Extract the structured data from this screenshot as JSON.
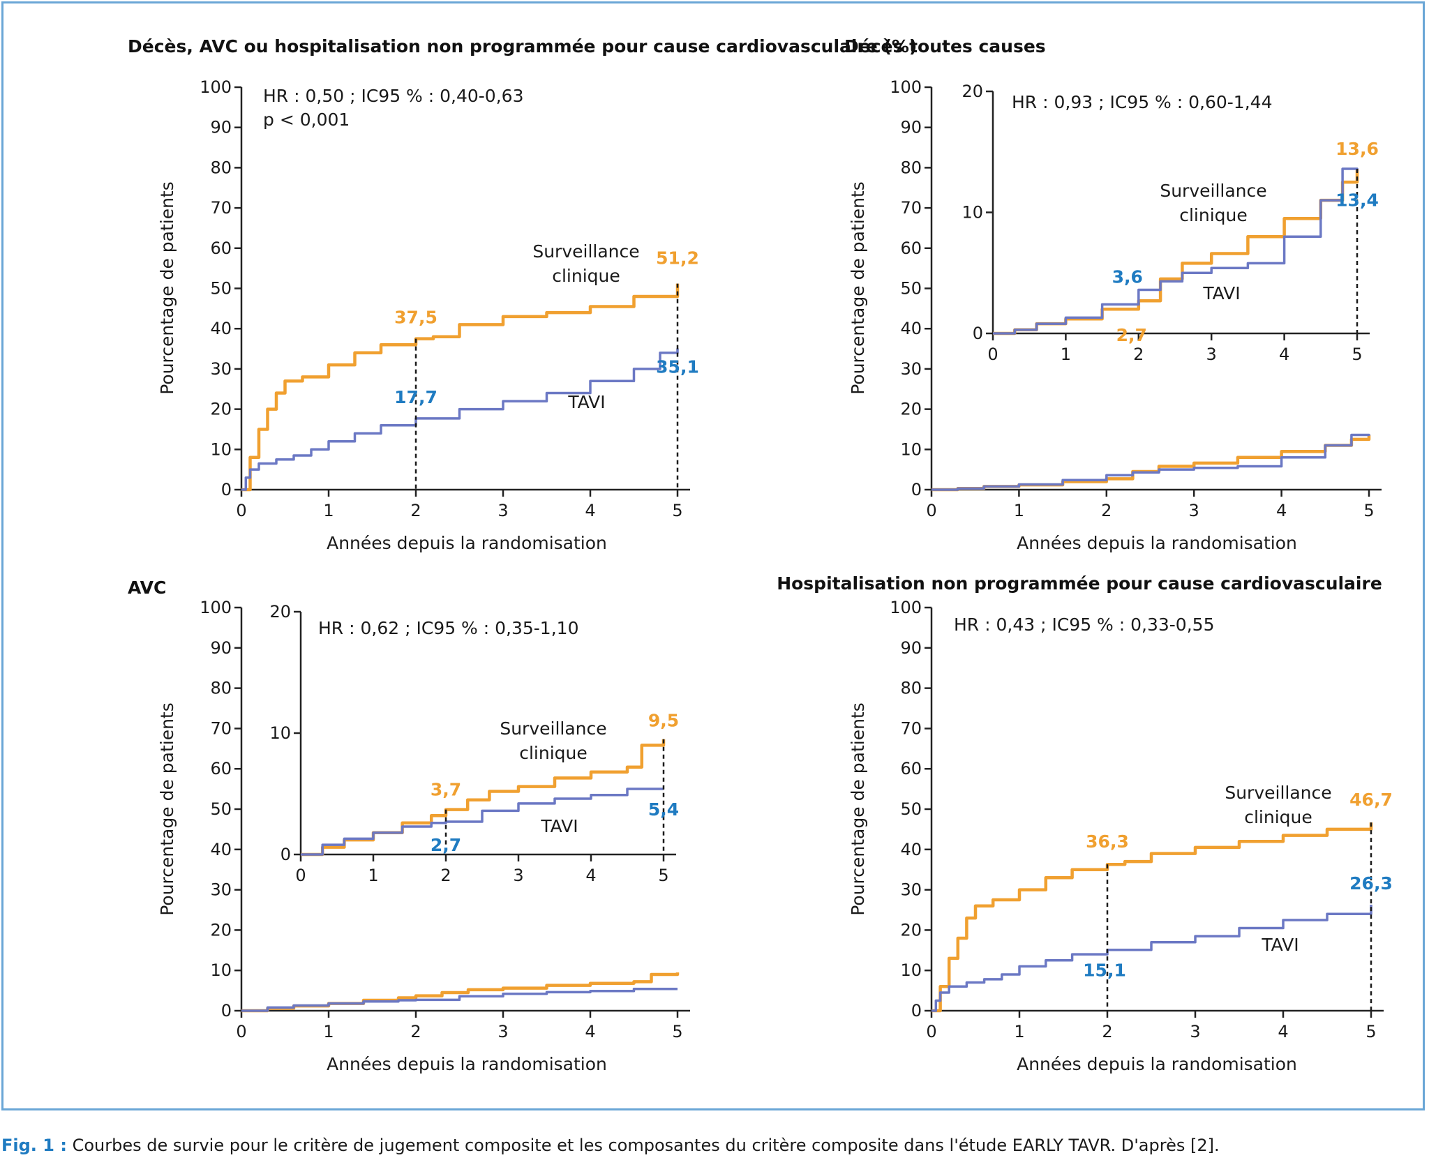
{
  "caption": {
    "label": "Fig. 1 :",
    "text": "Courbes de survie pour le critère de jugement composite et les composantes du critère composite dans l'étude EARLY TAVR. D'après [2]."
  },
  "colors": {
    "surveillance": "#f0a030",
    "tavi": "#6b78c4",
    "label_blue": "#1f7bc1",
    "frame": "#6aa6d6"
  },
  "chart_data": [
    {
      "id": "composite",
      "type": "line",
      "step": true,
      "title": "Décès, AVC ou hospitalisation non programmée pour cause cardiovasculaire (%)",
      "xlabel": "Années depuis la randomisation",
      "ylabel": "Pourcentage de patients",
      "xlim": [
        0,
        5
      ],
      "ylim": [
        0,
        100
      ],
      "xticks": [
        0,
        1,
        2,
        3,
        4,
        5
      ],
      "yticks": [
        0,
        10,
        20,
        30,
        40,
        50,
        60,
        70,
        80,
        90,
        100
      ],
      "annotation": [
        "HR : 0,50 ; IC95 % : 0,40-0,63",
        "p < 0,001"
      ],
      "series": [
        {
          "name": "Surveillance clinique",
          "color": "orange",
          "x": [
            0,
            0.1,
            0.2,
            0.3,
            0.4,
            0.5,
            0.7,
            1.0,
            1.3,
            1.6,
            2.0,
            2.2,
            2.5,
            3.0,
            3.5,
            4.0,
            4.5,
            5.0
          ],
          "y": [
            0,
            8,
            15,
            20,
            24,
            27,
            28,
            31,
            34,
            36,
            37.5,
            38,
            41,
            43,
            44,
            45.5,
            48,
            51.2
          ]
        },
        {
          "name": "TAVI",
          "color": "blue",
          "x": [
            0,
            0.05,
            0.1,
            0.2,
            0.4,
            0.6,
            0.8,
            1.0,
            1.3,
            1.6,
            2.0,
            2.5,
            3.0,
            3.5,
            4.0,
            4.5,
            4.8,
            5.0
          ],
          "y": [
            0,
            3,
            5,
            6.5,
            7.5,
            8.5,
            10,
            12,
            14,
            16,
            17.7,
            20,
            22,
            24,
            27,
            30,
            34,
            35.1
          ]
        }
      ],
      "series_labels": [
        "Surveillance",
        "clinique",
        "TAVI"
      ],
      "value_labels": [
        {
          "text": "51,2",
          "x": 5,
          "y": 51.2,
          "color": "orange"
        },
        {
          "text": "37,5",
          "x": 2,
          "y": 37.5,
          "color": "orange"
        },
        {
          "text": "17,7",
          "x": 2,
          "y": 17.7,
          "color": "blue"
        },
        {
          "text": "35,1",
          "x": 5,
          "y": 35.1,
          "color": "blue"
        }
      ]
    },
    {
      "id": "deces",
      "type": "line",
      "step": true,
      "title": "Décès toutes causes",
      "xlabel": "Années depuis la randomisation",
      "ylabel": "Pourcentage de patients",
      "xlim": [
        0,
        5
      ],
      "ylim": [
        0,
        100
      ],
      "xticks": [
        0,
        1,
        2,
        3,
        4,
        5
      ],
      "yticks": [
        0,
        10,
        20,
        30,
        40,
        50,
        60,
        70,
        80,
        90,
        100
      ],
      "series": [
        {
          "name": "Surveillance clinique",
          "color": "orange",
          "x": [
            0,
            0.3,
            0.6,
            1.0,
            1.5,
            2.0,
            2.3,
            2.6,
            3.0,
            3.5,
            4.0,
            4.5,
            4.8,
            5.0
          ],
          "y": [
            0,
            0.3,
            0.8,
            1.2,
            2.0,
            2.7,
            4.5,
            5.8,
            6.6,
            8.0,
            9.5,
            11.0,
            12.5,
            13.6
          ]
        },
        {
          "name": "TAVI",
          "color": "blue",
          "x": [
            0,
            0.3,
            0.6,
            1.0,
            1.5,
            2.0,
            2.3,
            2.6,
            3.0,
            3.5,
            4.0,
            4.5,
            4.8,
            5.0
          ],
          "y": [
            0,
            0.3,
            0.8,
            1.3,
            2.4,
            3.6,
            4.3,
            5.0,
            5.4,
            5.8,
            8.0,
            11.0,
            13.6,
            13.4
          ]
        }
      ],
      "inset": {
        "xlim": [
          0,
          5
        ],
        "ylim": [
          0,
          20
        ],
        "xticks": [
          0,
          1,
          2,
          3,
          4,
          5
        ],
        "yticks": [
          0,
          10,
          20
        ],
        "annotation": [
          "HR : 0,93 ; IC95 % : 0,60-1,44"
        ],
        "series_labels": [
          "Surveillance",
          "clinique",
          "TAVI"
        ],
        "value_labels": [
          {
            "text": "13,6",
            "x": 5,
            "y": 13.6,
            "color": "orange"
          },
          {
            "text": "13,4",
            "x": 5,
            "y": 13.4,
            "color": "blue"
          },
          {
            "text": "3,6",
            "x": 2,
            "y": 3.6,
            "color": "blue"
          },
          {
            "text": "2,7",
            "x": 2,
            "y": 2.7,
            "color": "orange"
          }
        ]
      }
    },
    {
      "id": "avc",
      "type": "line",
      "step": true,
      "title": "AVC",
      "xlabel": "Années depuis la randomisation",
      "ylabel": "Pourcentage de patients",
      "xlim": [
        0,
        5
      ],
      "ylim": [
        0,
        100
      ],
      "xticks": [
        0,
        1,
        2,
        3,
        4,
        5
      ],
      "yticks": [
        0,
        10,
        20,
        30,
        40,
        50,
        60,
        70,
        80,
        90,
        100
      ],
      "series": [
        {
          "name": "Surveillance clinique",
          "color": "orange",
          "x": [
            0,
            0.3,
            0.6,
            1.0,
            1.4,
            1.8,
            2.0,
            2.3,
            2.6,
            3.0,
            3.5,
            4.0,
            4.5,
            4.7,
            5.0
          ],
          "y": [
            0,
            0.6,
            1.2,
            1.8,
            2.6,
            3.2,
            3.7,
            4.5,
            5.2,
            5.6,
            6.3,
            6.8,
            7.2,
            9.0,
            9.5
          ]
        },
        {
          "name": "TAVI",
          "color": "blue",
          "x": [
            0,
            0.3,
            0.6,
            1.0,
            1.4,
            1.8,
            2.0,
            2.5,
            3.0,
            3.5,
            4.0,
            4.5,
            5.0
          ],
          "y": [
            0,
            0.8,
            1.3,
            1.8,
            2.3,
            2.6,
            2.7,
            3.6,
            4.2,
            4.6,
            4.9,
            5.4,
            5.4
          ]
        }
      ],
      "inset": {
        "xlim": [
          0,
          5
        ],
        "ylim": [
          0,
          20
        ],
        "xticks": [
          0,
          1,
          2,
          3,
          4,
          5
        ],
        "yticks": [
          0,
          10,
          20
        ],
        "annotation": [
          "HR : 0,62 ; IC95 % : 0,35-1,10"
        ],
        "series_labels": [
          "Surveillance",
          "clinique",
          "TAVI"
        ],
        "value_labels": [
          {
            "text": "9,5",
            "x": 5,
            "y": 9.5,
            "color": "orange"
          },
          {
            "text": "3,7",
            "x": 2,
            "y": 3.7,
            "color": "orange"
          },
          {
            "text": "2,7",
            "x": 2,
            "y": 2.7,
            "color": "blue"
          },
          {
            "text": "5,4",
            "x": 5,
            "y": 5.4,
            "color": "blue"
          }
        ]
      }
    },
    {
      "id": "hosp",
      "type": "line",
      "step": true,
      "title": "Hospitalisation non programmée pour cause cardiovasculaire",
      "xlabel": "Années depuis la randomisation",
      "ylabel": "Pourcentage de patients",
      "xlim": [
        0,
        5
      ],
      "ylim": [
        0,
        100
      ],
      "xticks": [
        0,
        1,
        2,
        3,
        4,
        5
      ],
      "yticks": [
        0,
        10,
        20,
        30,
        40,
        50,
        60,
        70,
        80,
        90,
        100
      ],
      "annotation": [
        "HR : 0,43 ; IC95 % : 0,33-0,55"
      ],
      "series": [
        {
          "name": "Surveillance clinique",
          "color": "orange",
          "x": [
            0,
            0.1,
            0.2,
            0.3,
            0.4,
            0.5,
            0.7,
            1.0,
            1.3,
            1.6,
            2.0,
            2.2,
            2.5,
            3.0,
            3.5,
            4.0,
            4.5,
            5.0
          ],
          "y": [
            0,
            6,
            13,
            18,
            23,
            26,
            27.5,
            30,
            33,
            35,
            36.3,
            37,
            39,
            40.5,
            42,
            43.5,
            45,
            46.7
          ]
        },
        {
          "name": "TAVI",
          "color": "blue",
          "x": [
            0,
            0.05,
            0.1,
            0.2,
            0.4,
            0.6,
            0.8,
            1.0,
            1.3,
            1.6,
            2.0,
            2.5,
            3.0,
            3.5,
            4.0,
            4.5,
            5.0
          ],
          "y": [
            0,
            2.5,
            4.5,
            6,
            7,
            7.8,
            9,
            11,
            12.5,
            14,
            15.1,
            17,
            18.5,
            20.5,
            22.5,
            24,
            26.3
          ]
        }
      ],
      "series_labels": [
        "Surveillance",
        "clinique",
        "TAVI"
      ],
      "value_labels": [
        {
          "text": "46,7",
          "x": 5,
          "y": 46.7,
          "color": "orange"
        },
        {
          "text": "36,3",
          "x": 2,
          "y": 36.3,
          "color": "orange"
        },
        {
          "text": "15,1",
          "x": 2,
          "y": 15.1,
          "color": "blue"
        },
        {
          "text": "26,3",
          "x": 5,
          "y": 26.3,
          "color": "blue"
        }
      ]
    }
  ]
}
